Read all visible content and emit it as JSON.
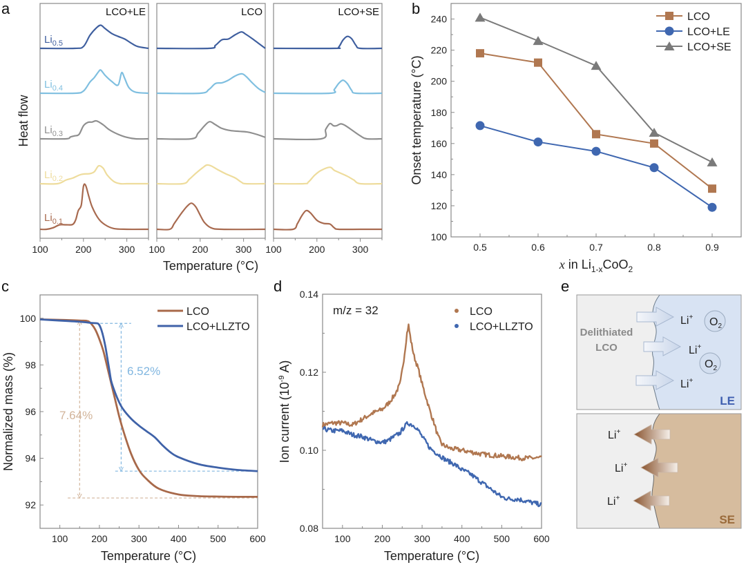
{
  "panel_letters": {
    "a": "a",
    "b": "b",
    "c": "c",
    "d": "d",
    "e": "e"
  },
  "colors": {
    "li05": "#3f5f9f",
    "li04": "#7fbfe0",
    "li03": "#8f8f8f",
    "li02": "#eedc9c",
    "li01": "#a86a4f",
    "lco": "#b07750",
    "lco_le": "#3f67b0",
    "lco_se": "#7a7a7a",
    "lco_tga": "#a8694a",
    "llzto_tga": "#3f62a8",
    "annot_lco": "#d2b49a",
    "annot_llzto": "#80b6e0",
    "le_label": "#3f5fb0",
    "se_label": "#9a6a3a"
  },
  "chart_data": [
    {
      "id": "a",
      "type": "line",
      "title": "",
      "ylabel": "Heat flow",
      "xlabel": "Temperature (°C)",
      "xlim": [
        100,
        350
      ],
      "xticks": [
        100,
        200,
        300
      ],
      "offset_labels": [
        {
          "base": "Li",
          "sub": "0.5"
        },
        {
          "base": "Li",
          "sub": "0.4"
        },
        {
          "base": "Li",
          "sub": "0.3"
        },
        {
          "base": "Li",
          "sub": "0.2"
        },
        {
          "base": "Li",
          "sub": "0.1"
        }
      ],
      "subplots": [
        {
          "title": "LCO+LE",
          "series": [
            {
              "name": "Li0.5",
              "x": [
                100,
                180,
                200,
                215,
                230,
                240,
                250,
                265,
                280,
                295,
                310,
                325,
                350
              ],
              "y": [
                0,
                0,
                0.5,
                3.5,
                5.5,
                6.2,
                5.3,
                4,
                3.2,
                2.5,
                1.4,
                0.5,
                0
              ]
            },
            {
              "name": "Li0.4",
              "x": [
                100,
                180,
                200,
                215,
                225,
                235,
                240,
                250,
                265,
                280,
                288,
                295,
                305,
                320,
                350
              ],
              "y": [
                0,
                0,
                0.6,
                3,
                4.2,
                5.8,
                6.2,
                4.8,
                3.2,
                2.2,
                5.5,
                4,
                1.5,
                0.3,
                0
              ]
            },
            {
              "name": "Li0.3",
              "x": [
                100,
                160,
                170,
                180,
                190,
                200,
                210,
                220,
                230,
                245,
                260,
                280,
                300,
                320,
                350
              ],
              "y": [
                0,
                0,
                0.5,
                0.8,
                1.2,
                3.5,
                4.4,
                4.5,
                4.8,
                3.8,
                2.4,
                1.2,
                0.4,
                0,
                0
              ]
            },
            {
              "name": "Li0.2",
              "x": [
                100,
                140,
                160,
                175,
                190,
                200,
                215,
                225,
                235,
                245,
                255,
                270,
                285,
                300,
                350
              ],
              "y": [
                0,
                0,
                1,
                1.5,
                2.3,
                2.6,
                2.7,
                3.2,
                4.8,
                4.2,
                2.3,
                0.6,
                0,
                0,
                0
              ]
            },
            {
              "name": "Li0.1",
              "x": [
                100,
                115,
                130,
                145,
                160,
                175,
                182,
                188,
                195,
                200,
                205,
                212,
                220,
                235,
                250,
                270,
                300,
                350
              ],
              "y": [
                0,
                0,
                0.4,
                1.2,
                1.2,
                1.3,
                2.5,
                5,
                6.5,
                11.5,
                11.8,
                9,
                6,
                2.8,
                1.2,
                0.2,
                0,
                0
              ]
            }
          ]
        },
        {
          "title": "LCO",
          "series": [
            {
              "name": "Li0.5",
              "x": [
                100,
                220,
                235,
                250,
                265,
                280,
                295,
                305,
                320,
                335,
                350
              ],
              "y": [
                0,
                0,
                0.8,
                2.3,
                2.5,
                3.6,
                4.4,
                3.8,
                2.6,
                1.3,
                0
              ]
            },
            {
              "name": "Li0.4",
              "x": [
                100,
                200,
                220,
                235,
                250,
                265,
                280,
                295,
                305,
                320,
                335,
                350
              ],
              "y": [
                0,
                0,
                1,
                2.6,
                2.8,
                3.5,
                4.6,
                5.2,
                4.6,
                2.8,
                1.2,
                0.2
              ]
            },
            {
              "name": "Li0.3",
              "x": [
                100,
                180,
                195,
                210,
                222,
                235,
                250,
                270,
                290,
                310,
                330,
                350
              ],
              "y": [
                0,
                0,
                1.5,
                3.5,
                4.6,
                3.8,
                2.8,
                2.2,
                2,
                1.8,
                1.2,
                0.4
              ]
            },
            {
              "name": "Li0.2",
              "x": [
                100,
                160,
                175,
                190,
                205,
                215,
                225,
                240,
                260,
                280,
                295,
                305,
                350
              ],
              "y": [
                0,
                0,
                1.2,
                2.8,
                4.2,
                5,
                4.8,
                3.8,
                2.6,
                1.6,
                0.4,
                0,
                0
              ]
            },
            {
              "name": "Li0.1",
              "x": [
                100,
                130,
                140,
                150,
                160,
                170,
                180,
                190,
                200,
                210,
                225,
                250,
                350
              ],
              "y": [
                0,
                0,
                1.5,
                3.2,
                4.8,
                6.2,
                7,
                6,
                3.8,
                1.8,
                0.4,
                0,
                0
              ]
            }
          ]
        },
        {
          "title": "LCO+SE",
          "series": [
            {
              "name": "Li0.5",
              "x": [
                100,
                240,
                250,
                260,
                270,
                280,
                290,
                300,
                350
              ],
              "y": [
                0,
                0,
                0.3,
                2.2,
                3.2,
                2.6,
                0.8,
                0,
                0
              ]
            },
            {
              "name": "Li0.4",
              "x": [
                100,
                230,
                240,
                250,
                260,
                270,
                280,
                290,
                350
              ],
              "y": [
                0,
                0,
                1,
                2.6,
                3.5,
                2.6,
                0.8,
                0,
                0
              ]
            },
            {
              "name": "Li0.3",
              "x": [
                100,
                210,
                220,
                230,
                238,
                245,
                255,
                265,
                280,
                300,
                315,
                350
              ],
              "y": [
                0,
                0,
                2.5,
                4.1,
                3.5,
                3.5,
                4,
                3.6,
                2.4,
                0.8,
                0,
                0
              ]
            },
            {
              "name": "Li0.2",
              "x": [
                100,
                170,
                180,
                195,
                210,
                230,
                240,
                255,
                270,
                285,
                300,
                350
              ],
              "y": [
                0,
                0,
                0.4,
                2.3,
                3.6,
                4.4,
                3.6,
                2.8,
                2,
                1,
                0,
                0
              ]
            },
            {
              "name": "Li0.1",
              "x": [
                100,
                145,
                155,
                165,
                175,
                185,
                200,
                215,
                230,
                240,
                250,
                300,
                350
              ],
              "y": [
                0,
                0,
                1.5,
                3.6,
                5,
                4.4,
                2.4,
                1.6,
                1.4,
                0.4,
                0,
                0,
                0
              ]
            }
          ]
        }
      ]
    },
    {
      "id": "b",
      "type": "line",
      "title": "",
      "xlabel": {
        "prefix": "x",
        "mid": " in Li",
        "sub": "1-x",
        "suffix": "CoO",
        "sub2": "2"
      },
      "ylabel": "Onset temperature (°C)",
      "x": [
        0.5,
        0.6,
        0.7,
        0.8,
        0.9
      ],
      "xlim": [
        0.45,
        0.95
      ],
      "ylim": [
        100,
        250
      ],
      "xticks": [
        "0.5",
        "0.6",
        "0.7",
        "0.8",
        "0.9"
      ],
      "yticks": [
        "100",
        "120",
        "140",
        "160",
        "180",
        "200",
        "220",
        "240"
      ],
      "legend_position": "top-right",
      "series": [
        {
          "name": "LCO",
          "marker": "square",
          "values": [
            218,
            212,
            166,
            160,
            131
          ]
        },
        {
          "name": "LCO+LE",
          "marker": "circle",
          "values": [
            171.5,
            161,
            155,
            144.5,
            119
          ]
        },
        {
          "name": "LCO+SE",
          "marker": "triangle",
          "values": [
            241,
            226,
            210,
            167,
            148
          ]
        }
      ]
    },
    {
      "id": "c",
      "type": "line",
      "title": "",
      "xlabel": "Temperature (°C)",
      "ylabel": "Normalized mass (%)",
      "xlim": [
        50,
        600
      ],
      "ylim": [
        91,
        101
      ],
      "xticks": [
        "100",
        "200",
        "300",
        "400",
        "500",
        "600"
      ],
      "yticks": [
        "92",
        "94",
        "96",
        "98",
        "100"
      ],
      "legend_position": "top-right",
      "series": [
        {
          "name": "LCO",
          "x": [
            50,
            100,
            150,
            170,
            180,
            190,
            200,
            210,
            220,
            230,
            240,
            250,
            260,
            280,
            300,
            320,
            350,
            400,
            450,
            500,
            550,
            600
          ],
          "y": [
            99.95,
            99.93,
            99.9,
            99.88,
            99.75,
            99.5,
            99.1,
            98.6,
            97.9,
            97.2,
            96.5,
            95.8,
            95.2,
            94.2,
            93.5,
            93.1,
            92.7,
            92.45,
            92.38,
            92.36,
            92.35,
            92.35
          ]
        },
        {
          "name": "LCO+LLZTO",
          "x": [
            50,
            100,
            150,
            180,
            195,
            200,
            205,
            210,
            215,
            220,
            225,
            230,
            240,
            250,
            260,
            280,
            300,
            320,
            340,
            360,
            380,
            400,
            450,
            500,
            550,
            600
          ],
          "y": [
            99.95,
            99.9,
            99.85,
            99.8,
            99.78,
            99.7,
            99.5,
            99.2,
            98.8,
            98.3,
            97.8,
            97.3,
            96.8,
            96.4,
            96.1,
            95.7,
            95.4,
            95.15,
            94.9,
            94.55,
            94.25,
            94.05,
            93.75,
            93.6,
            93.5,
            93.45
          ]
        }
      ],
      "annotations": [
        {
          "text": "7.64%",
          "series": "LCO",
          "from": 99.9,
          "to": 92.3
        },
        {
          "text": "6.52%",
          "series": "LCO+LLZTO",
          "from": 99.78,
          "to": 93.45
        }
      ]
    },
    {
      "id": "d",
      "type": "scatter",
      "title": "",
      "annotation": "m/z = 32",
      "xlabel": "Temperature (°C)",
      "ylabel": {
        "base": "Ion current (10",
        "sup": "-9",
        "suffix": " A)"
      },
      "xlim": [
        50,
        600
      ],
      "ylim": [
        0.08,
        0.14
      ],
      "xticks": [
        "100",
        "200",
        "300",
        "400",
        "500",
        "600"
      ],
      "yticks": [
        "0.08",
        "0.10",
        "0.12",
        "0.14"
      ],
      "legend_position": "top-right",
      "series": [
        {
          "name": "LCO",
          "x": [
            50,
            75,
            100,
            125,
            150,
            175,
            200,
            215,
            230,
            245,
            255,
            262,
            266,
            272,
            280,
            290,
            300,
            310,
            320,
            330,
            340,
            350,
            370,
            400,
            450,
            500,
            550,
            600
          ],
          "y": [
            0.1065,
            0.107,
            0.107,
            0.1065,
            0.108,
            0.1095,
            0.1105,
            0.112,
            0.114,
            0.117,
            0.124,
            0.13,
            0.132,
            0.128,
            0.124,
            0.121,
            0.117,
            0.1135,
            0.11,
            0.107,
            0.1035,
            0.1015,
            0.1005,
            0.1,
            0.099,
            0.0985,
            0.098,
            0.098
          ]
        },
        {
          "name": "LCO+LLZTO",
          "x": [
            50,
            75,
            100,
            125,
            150,
            175,
            200,
            215,
            230,
            245,
            255,
            265,
            275,
            285,
            300,
            320,
            340,
            360,
            380,
            400,
            420,
            440,
            460,
            480,
            500,
            520,
            540,
            560,
            580,
            600
          ],
          "y": [
            0.1055,
            0.105,
            0.105,
            0.104,
            0.1035,
            0.1025,
            0.102,
            0.1025,
            0.1035,
            0.1045,
            0.106,
            0.107,
            0.1065,
            0.106,
            0.1035,
            0.1005,
            0.099,
            0.0975,
            0.0965,
            0.095,
            0.094,
            0.0925,
            0.091,
            0.0895,
            0.088,
            0.0875,
            0.0875,
            0.087,
            0.0865,
            0.086
          ]
        }
      ]
    }
  ],
  "schematic_e": {
    "top": {
      "left_label_line1": "Delithiated",
      "left_label_line2": "LCO",
      "ion_label": "Li",
      "ion_charge": "+",
      "gas_label": "O",
      "gas_sub": "2",
      "electrolyte_label": "LE"
    },
    "bottom": {
      "ion_label": "Li",
      "ion_charge": "+",
      "electrolyte_label": "SE"
    }
  }
}
